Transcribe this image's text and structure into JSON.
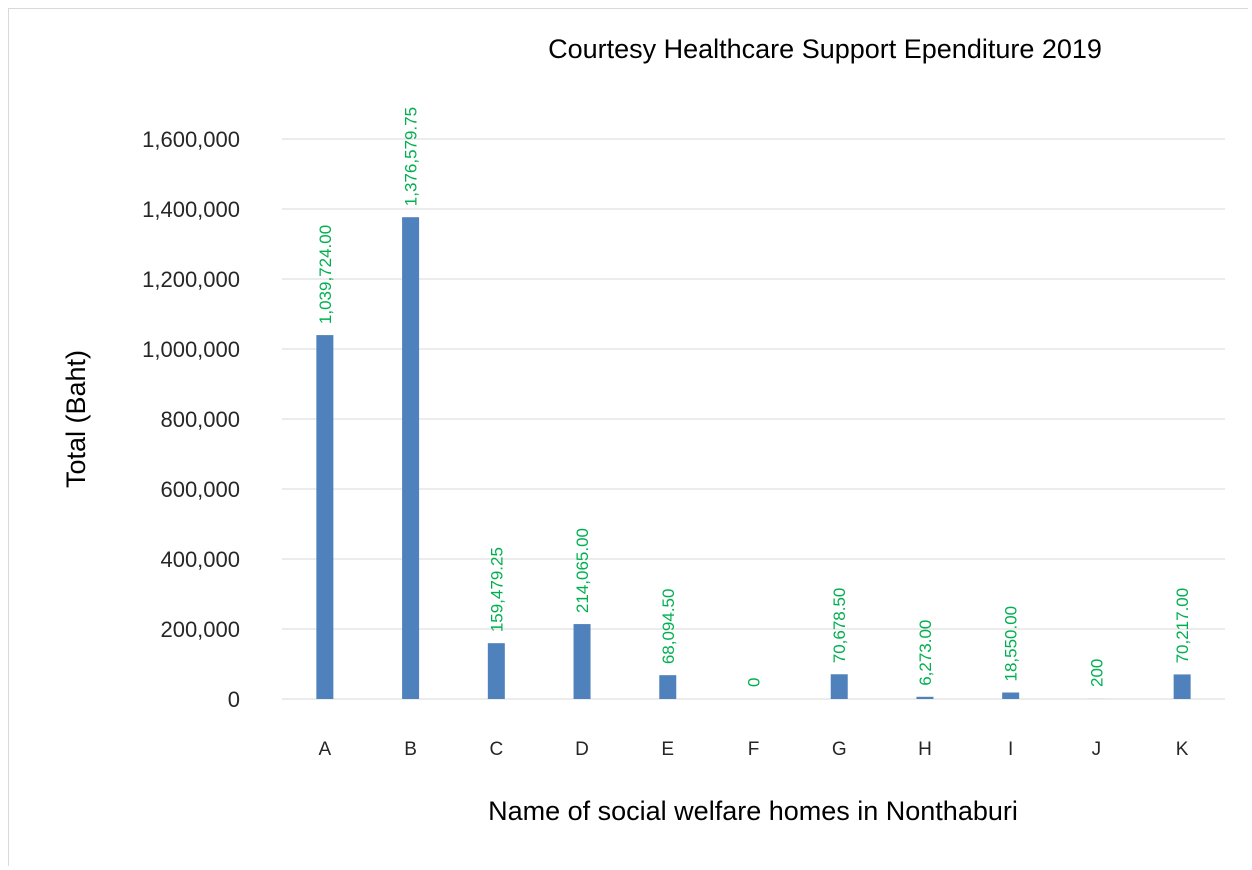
{
  "chart_data": {
    "type": "bar",
    "title": "Courtesy Healthcare Support Ependiture 2019",
    "xlabel": "Name of social welfare homes in Nonthaburi",
    "ylabel": "Total (Baht)",
    "categories": [
      "A",
      "B",
      "C",
      "D",
      "E",
      "F",
      "G",
      "H",
      "I",
      "J",
      "K"
    ],
    "values": [
      1039724.0,
      1376579.75,
      159479.25,
      214065.0,
      68094.5,
      0,
      70678.5,
      6273.0,
      18550.0,
      200,
      70217.0
    ],
    "data_labels": [
      "1,039,724.00",
      "1,376,579.75",
      "159,479.25",
      "214,065.00",
      "68,094.50",
      "0",
      "70,678.50",
      "6,273.00",
      "18,550.00",
      "200",
      "70,217.00"
    ],
    "ylim": [
      0,
      1600000
    ],
    "yticks": [
      0,
      200000,
      400000,
      600000,
      800000,
      1000000,
      1200000,
      1400000,
      1600000
    ],
    "ytick_labels": [
      "0",
      "200,000",
      "400,000",
      "600,000",
      "800,000",
      "1,000,000",
      "1,200,000",
      "1,400,000",
      "1,600,000"
    ],
    "grid": true,
    "legend": "none",
    "colors": {
      "bar": "#4f81bd",
      "data_label": "#00b050",
      "grid": "#d9d9d9"
    }
  }
}
